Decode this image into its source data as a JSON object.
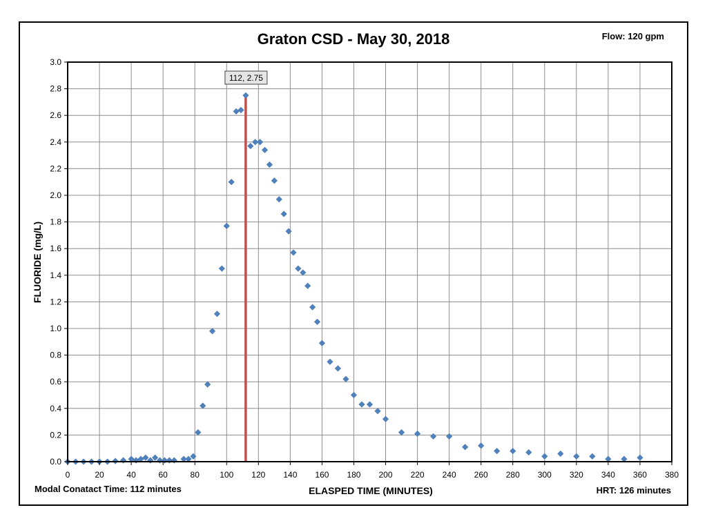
{
  "chart_data": {
    "type": "scatter",
    "title": "Graton CSD - May 30, 2018",
    "flow_label": "Flow: 120 gpm",
    "xlabel": "ELASPED TIME (MINUTES)",
    "ylabel": "FLUORIDE (mg/L)",
    "footer_left": "Modal Conatact Time: 112 minutes",
    "footer_right": "HRT: 126 minutes",
    "xlim": [
      0,
      380
    ],
    "ylim": [
      0,
      3.0
    ],
    "x_ticks": [
      "0",
      "20",
      "40",
      "60",
      "80",
      "100",
      "120",
      "140",
      "160",
      "180",
      "200",
      "220",
      "240",
      "260",
      "280",
      "300",
      "320",
      "340",
      "360",
      "380"
    ],
    "y_ticks": [
      "0.0",
      "0.2",
      "0.4",
      "0.6",
      "0.8",
      "1.0",
      "1.2",
      "1.4",
      "1.6",
      "1.8",
      "2.0",
      "2.2",
      "2.4",
      "2.6",
      "2.8",
      "3.0"
    ],
    "grid": true,
    "marker_color": "#4f81bd",
    "vline": {
      "x": 112,
      "y": 2.75,
      "color": "#c0504d",
      "label": "112, 2.75"
    },
    "points": [
      [
        0,
        0.0
      ],
      [
        5,
        0.0
      ],
      [
        10,
        0.0
      ],
      [
        15,
        0.0
      ],
      [
        20,
        0.0
      ],
      [
        25,
        0.0
      ],
      [
        30,
        0.005
      ],
      [
        35,
        0.01
      ],
      [
        40,
        0.02
      ],
      [
        43,
        0.01
      ],
      [
        46,
        0.02
      ],
      [
        49,
        0.03
      ],
      [
        52,
        0.01
      ],
      [
        55,
        0.03
      ],
      [
        58,
        0.01
      ],
      [
        61,
        0.01
      ],
      [
        64,
        0.01
      ],
      [
        67,
        0.01
      ],
      [
        73,
        0.02
      ],
      [
        76,
        0.02
      ],
      [
        79,
        0.04
      ],
      [
        82,
        0.22
      ],
      [
        85,
        0.42
      ],
      [
        88,
        0.58
      ],
      [
        91,
        0.98
      ],
      [
        94,
        1.11
      ],
      [
        97,
        1.45
      ],
      [
        100,
        1.77
      ],
      [
        103,
        2.1
      ],
      [
        106,
        2.63
      ],
      [
        109,
        2.64
      ],
      [
        112,
        2.75
      ],
      [
        115,
        2.37
      ],
      [
        118,
        2.4
      ],
      [
        121,
        2.4
      ],
      [
        124,
        2.34
      ],
      [
        127,
        2.23
      ],
      [
        130,
        2.11
      ],
      [
        133,
        1.97
      ],
      [
        136,
        1.86
      ],
      [
        139,
        1.73
      ],
      [
        142,
        1.57
      ],
      [
        145,
        1.45
      ],
      [
        148,
        1.42
      ],
      [
        151,
        1.32
      ],
      [
        154,
        1.16
      ],
      [
        157,
        1.05
      ],
      [
        160,
        0.89
      ],
      [
        165,
        0.75
      ],
      [
        170,
        0.7
      ],
      [
        175,
        0.62
      ],
      [
        180,
        0.5
      ],
      [
        185,
        0.43
      ],
      [
        190,
        0.43
      ],
      [
        195,
        0.38
      ],
      [
        200,
        0.32
      ],
      [
        210,
        0.22
      ],
      [
        220,
        0.21
      ],
      [
        230,
        0.19
      ],
      [
        240,
        0.19
      ],
      [
        250,
        0.11
      ],
      [
        260,
        0.12
      ],
      [
        270,
        0.08
      ],
      [
        280,
        0.08
      ],
      [
        290,
        0.07
      ],
      [
        300,
        0.04
      ],
      [
        310,
        0.06
      ],
      [
        320,
        0.04
      ],
      [
        330,
        0.04
      ],
      [
        340,
        0.02
      ],
      [
        350,
        0.02
      ],
      [
        360,
        0.03
      ]
    ]
  }
}
